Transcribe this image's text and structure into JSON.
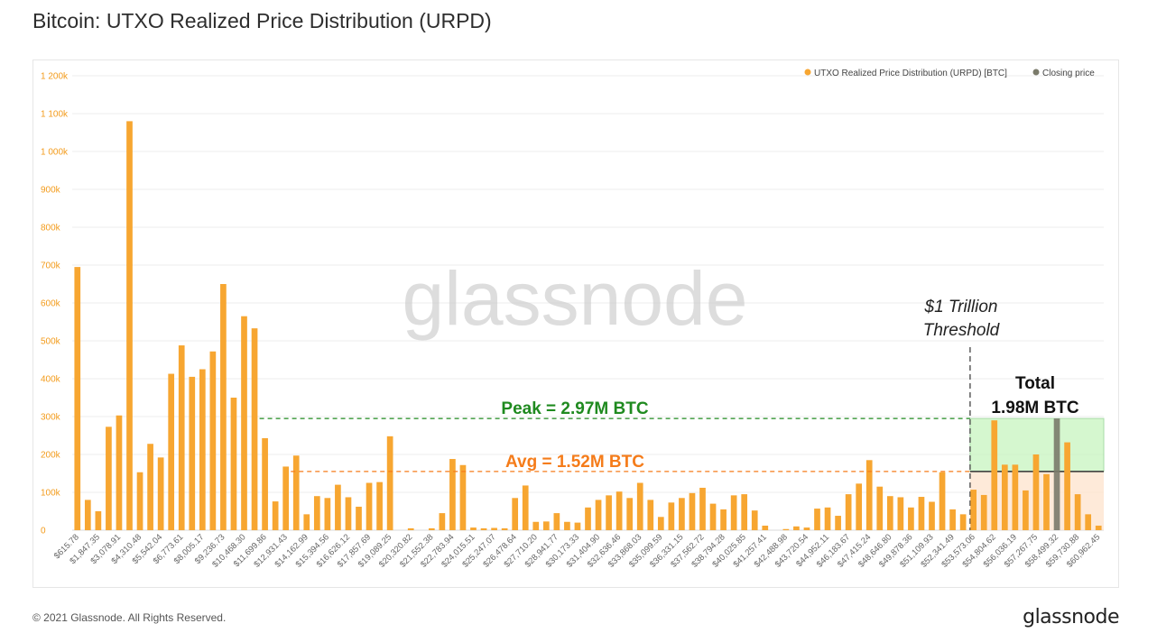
{
  "title": "Bitcoin: UTXO Realized Price Distribution (URPD)",
  "footer": {
    "copyright": "© 2021 Glassnode. All Rights Reserved.",
    "brand": "glassnode"
  },
  "watermark": "glassnode",
  "colors": {
    "bar": "#f7a631",
    "tick": "#f39b1b",
    "closing": "#7a7a6a",
    "peak": "#1f8a1f",
    "avg": "#f57c1a",
    "grid": "#ececec"
  },
  "annotations": {
    "threshold_line1": "$1 Trillion",
    "threshold_line2": "Threshold",
    "total_line1": "Total",
    "total_line2": "1.98M BTC",
    "peak_label": "Peak = 2.97M BTC",
    "avg_label": "Avg = 1.52M BTC"
  },
  "chart_data": {
    "type": "bar",
    "title": "Bitcoin: UTXO Realized Price Distribution (URPD)",
    "xlabel": "",
    "ylabel": "",
    "ylim": [
      0,
      1200000
    ],
    "y_ticks": [
      "0",
      "100k",
      "200k",
      "300k",
      "400k",
      "500k",
      "600k",
      "700k",
      "800k",
      "900k",
      "1 000k",
      "1 100k",
      "1 200k"
    ],
    "grid": true,
    "legend_position": "top-right",
    "legend": [
      {
        "name": "UTXO Realized Price Distribution (URPD) [BTC]",
        "color": "#f7a631"
      },
      {
        "name": "Closing price",
        "color": "#7a7a6a"
      }
    ],
    "x_tick_labels": [
      "$615.78",
      "$1,847.35",
      "$3,078.91",
      "$4,310.48",
      "$5,542.04",
      "$6,773.61",
      "$8,005.17",
      "$9,236.73",
      "$10,468.30",
      "$11,699.86",
      "$12,931.43",
      "$14,162.99",
      "$15,394.56",
      "$16,626.12",
      "$17,857.69",
      "$19,089.25",
      "$20,320.82",
      "$21,552.38",
      "$22,783.94",
      "$24,015.51",
      "$25,247.07",
      "$26,478.64",
      "$27,710.20",
      "$28,941.77",
      "$30,173.33",
      "$31,404.90",
      "$32,636.46",
      "$33,868.03",
      "$35,099.59",
      "$36,331.15",
      "$37,562.72",
      "$38,794.28",
      "$40,025.85",
      "$41,257.41",
      "$42,488.98",
      "$43,720.54",
      "$44,952.11",
      "$46,183.67",
      "$47,415.24",
      "$48,646.80",
      "$49,878.36",
      "$51,109.93",
      "$52,341.49",
      "$53,573.06",
      "$54,804.62",
      "$56,036.19",
      "$57,267.75",
      "$58,499.32",
      "$59,730.88",
      "$60,962.45"
    ],
    "values": [
      695000,
      80000,
      50000,
      273000,
      303000,
      1080000,
      153000,
      228000,
      192000,
      413000,
      488000,
      405000,
      425000,
      472000,
      650000,
      350000,
      565000,
      533000,
      243000,
      76000,
      168000,
      197000,
      42000,
      90000,
      85000,
      120000,
      87000,
      62000,
      125000,
      127000,
      248000,
      0,
      5000,
      0,
      5000,
      45000,
      188000,
      172000,
      7000,
      5000,
      6000,
      5000,
      85000,
      118000,
      22000,
      23000,
      45000,
      22000,
      20000,
      60000,
      80000,
      92000,
      102000,
      85000,
      125000,
      80000,
      35000,
      73000,
      85000,
      98000,
      112000,
      70000,
      55000,
      92000,
      95000,
      52000,
      12000,
      0,
      3000,
      10000,
      7000,
      57000,
      60000,
      38000,
      95000,
      123000,
      185000,
      115000,
      90000,
      87000,
      60000,
      88000,
      75000,
      153000,
      55000,
      42000,
      107000,
      93000,
      290000,
      173000,
      173000,
      105000,
      200000,
      148000,
      0,
      232000,
      95000,
      42000,
      12000
    ],
    "closing_price_bar_index": 94,
    "closing_price_value": 295000,
    "peak_line_value": 295000,
    "avg_line_value": 155000,
    "threshold_bar_index": 86
  }
}
